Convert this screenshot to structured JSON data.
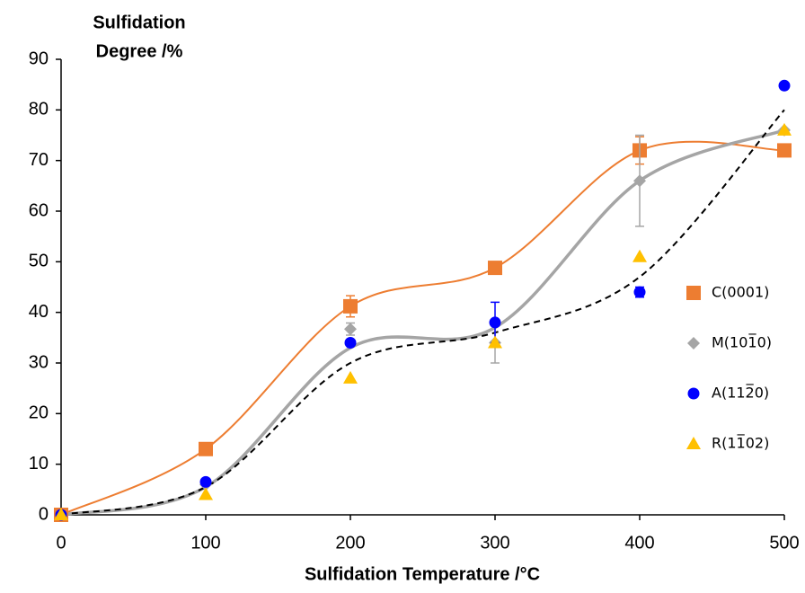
{
  "chart_data": {
    "type": "scatter",
    "ylabel": [
      "Sulfidation",
      "Degree /%"
    ],
    "xlabel": "Sulfidation Temperature /°C",
    "x": [
      0,
      100,
      200,
      300,
      400,
      500
    ],
    "xlim": [
      0,
      500
    ],
    "xticks": [
      0,
      100,
      200,
      300,
      400,
      500
    ],
    "ylim": [
      0,
      90
    ],
    "yticks": [
      0,
      10,
      20,
      30,
      40,
      50,
      60,
      70,
      80,
      90
    ],
    "series": [
      {
        "name": "C(0001)",
        "color": "#ed7d31",
        "marker": "square",
        "values": [
          0,
          13,
          41.2,
          48.8,
          72,
          72
        ],
        "errors": [
          null,
          null,
          2.1,
          null,
          2.7,
          null
        ]
      },
      {
        "name": "M(101̅0)",
        "color": "#a5a5a5",
        "marker": "diamond",
        "values": [
          0,
          6,
          36.7,
          34,
          66,
          76
        ],
        "errors": [
          null,
          null,
          1.2,
          4,
          9,
          null
        ]
      },
      {
        "name": "A(112̅0)",
        "color": "#0000ff",
        "marker": "circle",
        "values": [
          0,
          6.5,
          34,
          38,
          44,
          84.8
        ],
        "errors": [
          null,
          null,
          null,
          4,
          1,
          null
        ]
      },
      {
        "name": "R(11̅02)",
        "color": "#ffc000",
        "marker": "triangle",
        "values": [
          0,
          4,
          27,
          34,
          51,
          76
        ],
        "errors": [
          null,
          null,
          null,
          null,
          null,
          null
        ]
      }
    ],
    "curves": [
      {
        "color": "#ed7d31",
        "width": 2,
        "dashed": false,
        "values": [
          0,
          13,
          41.2,
          48.8,
          72,
          72
        ]
      },
      {
        "color": "#a5a5a5",
        "width": 3.5,
        "dashed": false,
        "values": [
          0,
          5.5,
          33,
          37,
          66,
          76
        ]
      },
      {
        "color": "#000000",
        "width": 2,
        "dashed": true,
        "values": [
          0,
          5.5,
          30,
          36,
          47,
          80
        ]
      }
    ]
  }
}
